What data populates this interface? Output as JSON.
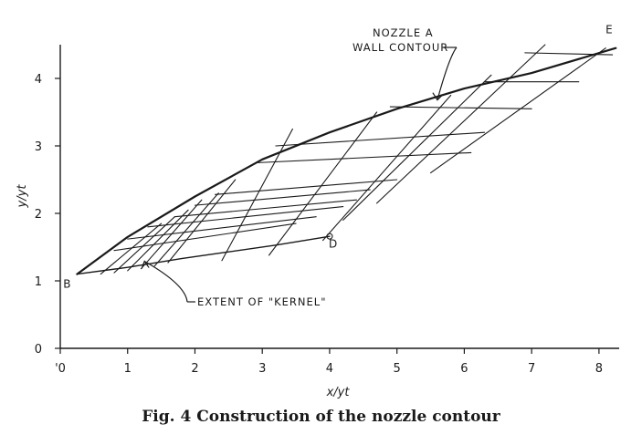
{
  "caption": "Fig. 4   Construction of the nozzle contour",
  "chart_data": {
    "type": "line",
    "title": "",
    "xlabel": "x/yt",
    "ylabel": "y/yt",
    "xlim": [
      0,
      8.3
    ],
    "ylim": [
      0,
      4.5
    ],
    "xticks": [
      0,
      1,
      2,
      3,
      4,
      5,
      6,
      7,
      8
    ],
    "yticks": [
      0,
      1,
      2,
      3,
      4
    ],
    "xtick_labels": [
      "'0",
      "1",
      "2",
      "3",
      "4",
      "5",
      "6",
      "7",
      "8"
    ],
    "ytick_labels": [
      "0",
      "1",
      "2",
      "3",
      "4"
    ],
    "grid": false,
    "series": [
      {
        "role": "wall-contour",
        "width": 2.2,
        "x": [
          0.25,
          1.0,
          2.0,
          3.0,
          4.0,
          5.0,
          6.0,
          7.0,
          8.25
        ],
        "y": [
          1.1,
          1.65,
          2.25,
          2.8,
          3.2,
          3.55,
          3.85,
          4.08,
          4.45
        ]
      },
      {
        "role": "kernel-extent",
        "width": 1.4,
        "x": [
          0.25,
          1.0,
          1.8,
          2.5,
          3.2,
          4.0
        ],
        "y": [
          1.1,
          1.2,
          1.33,
          1.43,
          1.53,
          1.66
        ]
      }
    ],
    "characteristics_rising": [
      [
        [
          0.6,
          1.1
        ],
        [
          1.5,
          1.85
        ]
      ],
      [
        [
          0.8,
          1.12
        ],
        [
          1.7,
          1.95
        ]
      ],
      [
        [
          1.0,
          1.15
        ],
        [
          1.9,
          2.05
        ]
      ],
      [
        [
          1.2,
          1.18
        ],
        [
          2.1,
          2.2
        ]
      ],
      [
        [
          1.4,
          1.22
        ],
        [
          2.35,
          2.3
        ]
      ],
      [
        [
          1.6,
          1.27
        ],
        [
          2.6,
          2.5
        ]
      ],
      [
        [
          2.4,
          1.3
        ],
        [
          3.45,
          3.25
        ]
      ],
      [
        [
          3.1,
          1.38
        ],
        [
          4.7,
          3.5
        ]
      ],
      [
        [
          3.9,
          1.6
        ],
        [
          5.8,
          3.75
        ]
      ],
      [
        [
          4.2,
          1.9
        ],
        [
          6.4,
          4.05
        ]
      ],
      [
        [
          4.7,
          2.15
        ],
        [
          7.2,
          4.5
        ]
      ],
      [
        [
          5.5,
          2.6
        ],
        [
          8.1,
          4.45
        ]
      ]
    ],
    "characteristics_level": [
      [
        [
          0.8,
          1.45
        ],
        [
          3.5,
          1.85
        ]
      ],
      [
        [
          1.0,
          1.62
        ],
        [
          3.8,
          1.95
        ]
      ],
      [
        [
          1.3,
          1.8
        ],
        [
          4.2,
          2.1
        ]
      ],
      [
        [
          1.7,
          1.95
        ],
        [
          4.4,
          2.2
        ]
      ],
      [
        [
          2.0,
          2.12
        ],
        [
          4.6,
          2.35
        ]
      ],
      [
        [
          2.3,
          2.28
        ],
        [
          5.0,
          2.5
        ]
      ],
      [
        [
          2.9,
          2.75
        ],
        [
          6.1,
          2.9
        ]
      ],
      [
        [
          3.2,
          3.0
        ],
        [
          6.3,
          3.2
        ]
      ],
      [
        [
          4.9,
          3.58
        ],
        [
          7.0,
          3.55
        ]
      ],
      [
        [
          6.3,
          3.95
        ],
        [
          7.7,
          3.95
        ]
      ],
      [
        [
          6.9,
          4.38
        ],
        [
          8.2,
          4.35
        ]
      ]
    ],
    "point_labels": [
      {
        "text": "B",
        "x": 0.1,
        "y": 0.95
      },
      {
        "text": "D",
        "x": 4.05,
        "y": 1.55
      },
      {
        "text": "E",
        "x": 8.15,
        "y": 4.72
      }
    ],
    "point_marks": [
      {
        "x": 4.0,
        "y": 1.66
      }
    ],
    "annotations": [
      {
        "line1": "NOZZLE A",
        "line2": "WALL CONTOUR",
        "arrow_to": {
          "x": 5.6,
          "y": 3.68
        }
      },
      {
        "line1": "EXTENT OF \"KERNEL\"",
        "arrow_to": {
          "x": 1.25,
          "y": 1.29
        }
      }
    ]
  }
}
